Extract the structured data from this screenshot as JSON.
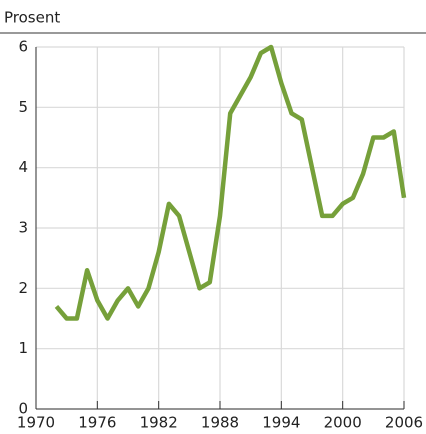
{
  "chart_data": {
    "type": "line",
    "y_label": "Prosent",
    "x": [
      1972,
      1973,
      1974,
      1975,
      1976,
      1977,
      1978,
      1979,
      1980,
      1981,
      1982,
      1983,
      1984,
      1985,
      1986,
      1987,
      1988,
      1989,
      1990,
      1991,
      1992,
      1993,
      1994,
      1995,
      1996,
      1997,
      1998,
      1999,
      2000,
      2001,
      2002,
      2003,
      2004,
      2005,
      2006
    ],
    "series": [
      {
        "color": "#76a03a",
        "values": [
          1.7,
          1.5,
          1.5,
          2.3,
          1.8,
          1.5,
          1.8,
          2.0,
          1.7,
          2.0,
          2.6,
          3.4,
          3.2,
          2.6,
          2.0,
          2.1,
          3.2,
          4.9,
          5.2,
          5.5,
          5.9,
          6.0,
          5.4,
          4.9,
          4.8,
          4.0,
          3.2,
          3.2,
          3.4,
          3.5,
          3.9,
          4.5,
          4.5,
          4.6,
          3.5
        ]
      }
    ],
    "xlim": [
      1970,
      2006
    ],
    "xticks": [
      1970,
      1976,
      1982,
      1988,
      1994,
      2000,
      2006
    ],
    "ylim": [
      0,
      6
    ],
    "yticks": [
      0,
      1,
      2,
      3,
      4,
      5,
      6
    ],
    "grid": true
  }
}
